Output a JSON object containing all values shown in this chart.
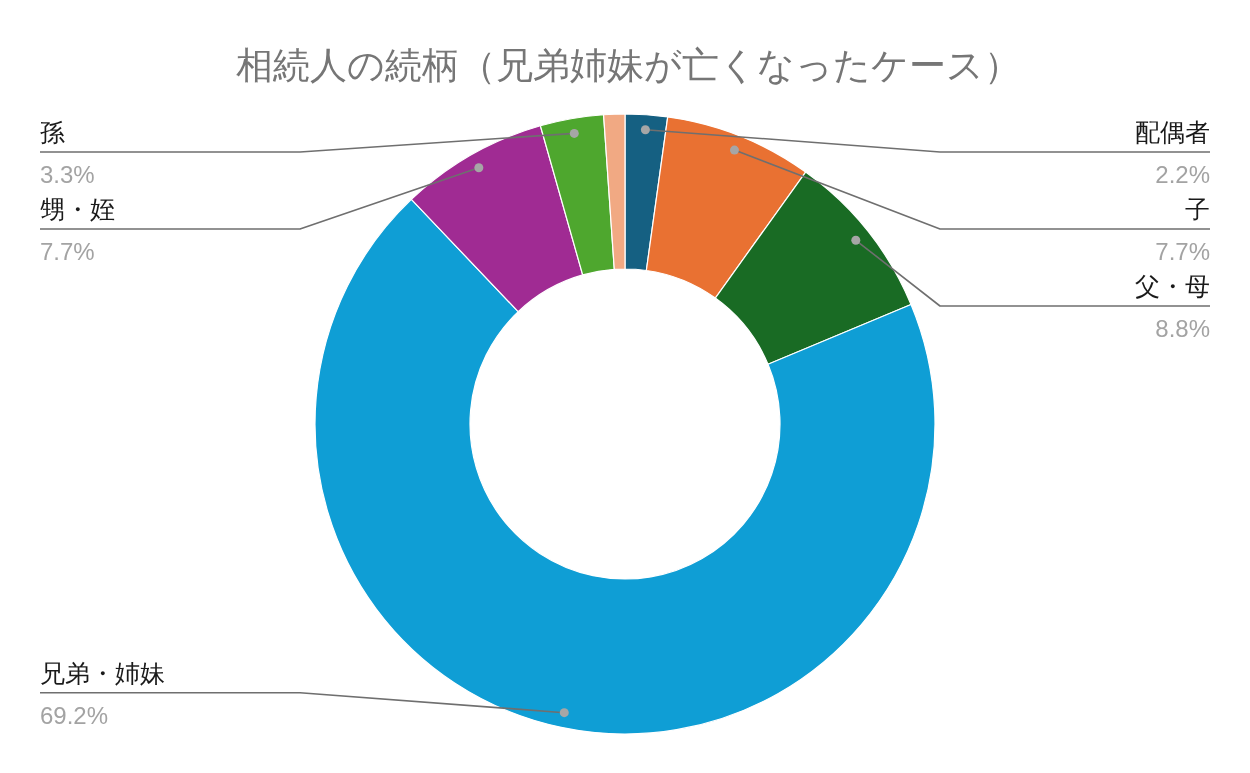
{
  "chart_data": {
    "type": "donut",
    "title": "相続人の続柄（兄弟姉妹が亡くなったケース）",
    "categories": [
      "配偶者",
      "子",
      "父・母",
      "兄弟・姉妹",
      "甥・姪",
      "孫",
      null
    ],
    "values": [
      2.2,
      7.7,
      8.8,
      69.2,
      7.7,
      3.3,
      1.1
    ],
    "colors": [
      "#156082",
      "#e97132",
      "#196b24",
      "#0f9ed5",
      "#a02b93",
      "#4ea72e",
      "#f1a983"
    ],
    "value_labels": [
      "2.2%",
      "7.7%",
      "8.8%",
      "69.2%",
      "7.7%",
      "3.3%",
      null
    ]
  }
}
